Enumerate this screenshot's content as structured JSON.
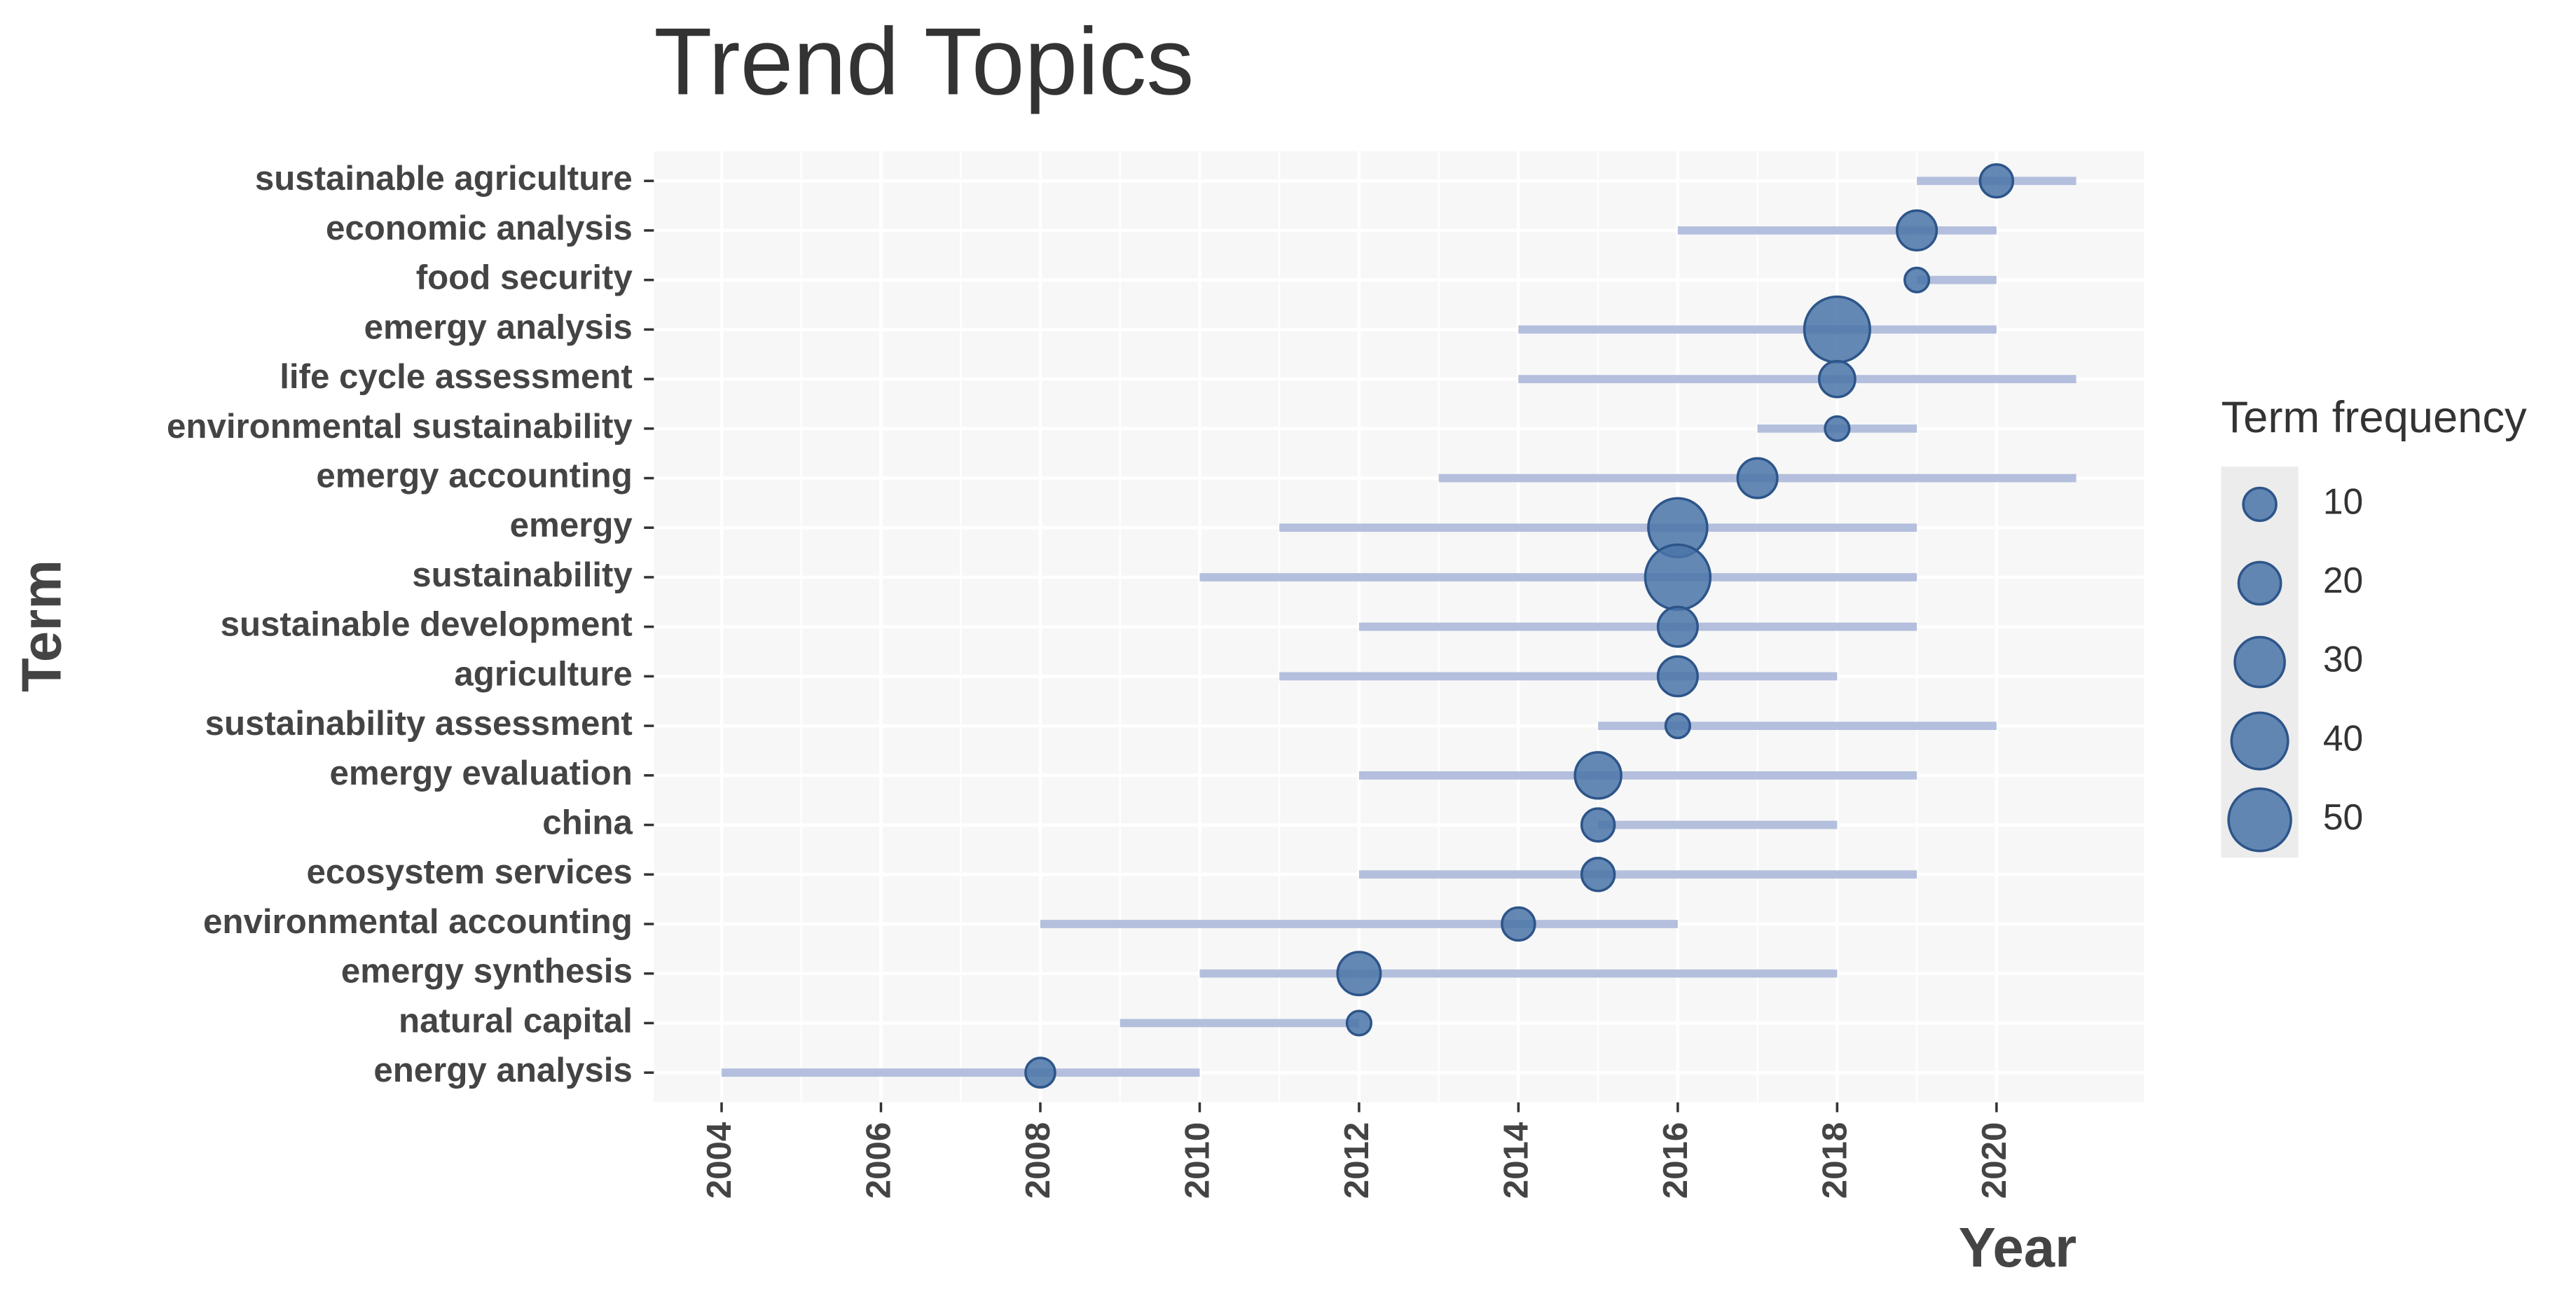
{
  "chart_data": {
    "type": "trend",
    "title": "Trend Topics",
    "x_label": "Year",
    "y_label": "Term",
    "categories": [
      "sustainable agriculture",
      "economic analysis",
      "food security",
      "emergy analysis",
      "life cycle assessment",
      "environmental sustainability",
      "emergy accounting",
      "emergy",
      "sustainability",
      "sustainable development",
      "agriculture",
      "sustainability assessment",
      "emergy evaluation",
      "china",
      "ecosystem services",
      "environmental accounting",
      "emergy synthesis",
      "natural capital",
      "energy analysis"
    ],
    "year_q1": [
      2019,
      2016,
      2019,
      2014,
      2014,
      2017,
      2013,
      2011,
      2010,
      2012,
      2011,
      2015,
      2012,
      2015,
      2012,
      2008,
      2010,
      2009,
      2004
    ],
    "year_median": [
      2020,
      2019,
      2019,
      2018,
      2018,
      2018,
      2017,
      2016,
      2016,
      2016,
      2016,
      2016,
      2015,
      2015,
      2015,
      2014,
      2012,
      2012,
      2008
    ],
    "year_q3": [
      2021,
      2020,
      2020,
      2020,
      2021,
      2019,
      2021,
      2019,
      2019,
      2019,
      2018,
      2020,
      2019,
      2018,
      2019,
      2016,
      2018,
      2012,
      2010
    ],
    "frequency": [
      10,
      17,
      3,
      56,
      13,
      3,
      17,
      44,
      55,
      17,
      17,
      3,
      25,
      10,
      10,
      10,
      21,
      3,
      7
    ],
    "point_color": "#4a74a8",
    "segment_color": "#b3bfdc",
    "xlim": [
      2003.15,
      2021.85
    ],
    "xticks": [
      2004,
      2006,
      2008,
      2010,
      2012,
      2014,
      2016,
      2018,
      2020
    ],
    "grid": true,
    "size_legend": {
      "title": "Term frequency",
      "values": [
        10,
        20,
        30,
        40,
        50
      ]
    }
  }
}
